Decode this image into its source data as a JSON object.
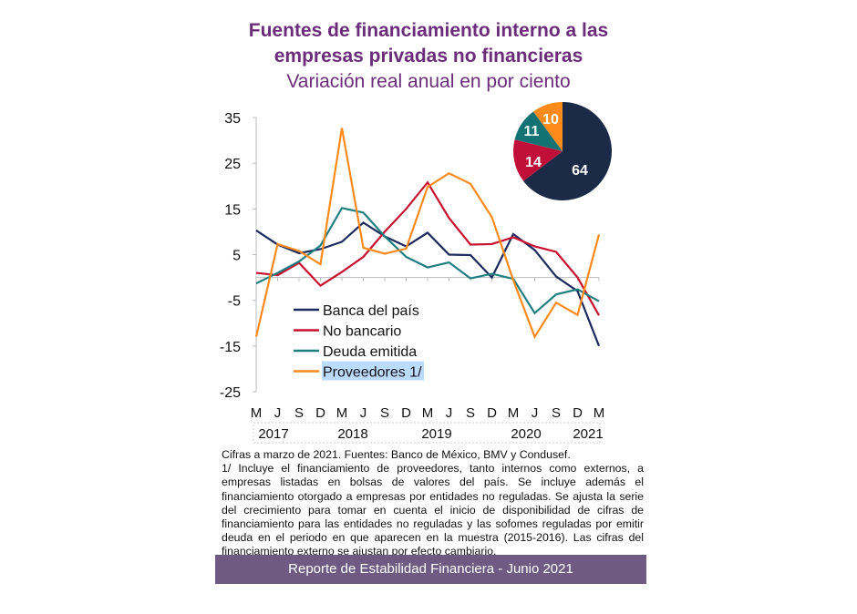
{
  "header": {
    "title_line1": "Fuentes de financiamiento interno a las",
    "title_line2": "empresas privadas no financieras",
    "subtitle": "Variación real anual en por ciento"
  },
  "chart_data": {
    "type": "line",
    "title": "Fuentes de financiamiento interno a las empresas privadas no financieras",
    "subtitle": "Variación real anual en por ciento",
    "x": [
      "M",
      "J",
      "S",
      "D",
      "M",
      "J",
      "S",
      "D",
      "M",
      "J",
      "S",
      "D",
      "M",
      "J",
      "S",
      "D",
      "M"
    ],
    "year_labels": [
      "2017",
      "2018",
      "2019",
      "2020",
      "2021"
    ],
    "yticks": [
      35,
      25,
      15,
      5,
      -5,
      -15,
      -25
    ],
    "ylim": [
      -25,
      35
    ],
    "legend_position": "center-left",
    "series": [
      {
        "name": "Banca del país",
        "color": "#1c2a5e",
        "values": [
          10.3,
          7.2,
          5.3,
          6.2,
          7.8,
          12,
          9,
          6.8,
          9.8,
          5,
          4.9,
          0,
          9.5,
          6,
          0.2,
          -3,
          -15
        ]
      },
      {
        "name": "No bancario",
        "color": "#c8102e",
        "values": [
          1,
          0.5,
          3.2,
          -1.8,
          1.2,
          4.5,
          10,
          15,
          20.8,
          13,
          7.2,
          7.3,
          8.8,
          6.8,
          5.6,
          0,
          -8.3
        ]
      },
      {
        "name": "Deuda emitida",
        "color": "#1f7f80",
        "values": [
          -1.3,
          1,
          3.5,
          7,
          15.2,
          14.2,
          9,
          4.5,
          2.2,
          3.3,
          -0.2,
          0.8,
          -0.3,
          -7.8,
          -3.7,
          -2.6,
          -5.2
        ]
      },
      {
        "name": "Proveedores 1/",
        "color": "#ff8a1c",
        "values": [
          -13,
          7.3,
          5.8,
          2.9,
          32.7,
          6.5,
          5.2,
          6.3,
          19.8,
          22.8,
          20.5,
          13.2,
          -0.6,
          -13,
          -5.5,
          -8.2,
          9.4
        ]
      }
    ],
    "pie": {
      "values": [
        64,
        14,
        11,
        10
      ],
      "labels": [
        "64",
        "14",
        "11",
        "10"
      ],
      "colors": [
        "#1b2a47",
        "#c0103a",
        "#137273",
        "#ff8a1c"
      ]
    }
  },
  "notes": {
    "source": "Cifras a marzo de 2021. Fuentes: Banco de México, BMV y Condusef.",
    "footnote": "1/ Incluye el financiamiento de proveedores, tanto internos como externos, a empresas listadas en bolsas de valores del país. Se incluye además el financiamiento otorgado a empresas por entidades no reguladas. Se ajusta la serie del crecimiento para tomar en cuenta el inicio de disponibilidad de cifras de financiamiento para las entidades no reguladas y las sofomes reguladas por emitir deuda en el periodo en que aparecen en la muestra (2015-2016). Las cifras del financiamiento externo se ajustan por efecto cambiario."
  },
  "footer": {
    "banner": "Reporte de Estabilidad Financiera - Junio 2021"
  }
}
